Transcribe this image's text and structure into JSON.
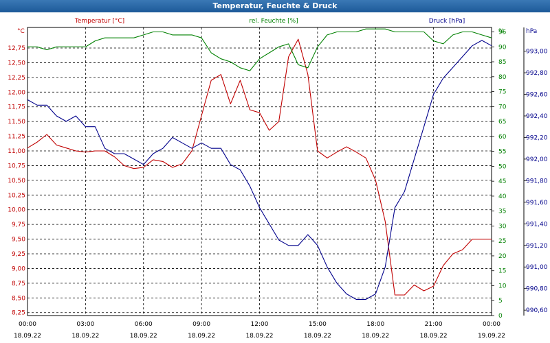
{
  "window": {
    "title": "Temperatur, Feuchte & Druck"
  },
  "chart_data": {
    "type": "line",
    "title": "Temperatur, Feuchte & Druck",
    "grid": true,
    "x_ticks": [
      {
        "time": "00:00",
        "date": "18.09.22"
      },
      {
        "time": "03:00",
        "date": "18.09.22"
      },
      {
        "time": "06:00",
        "date": "18.09.22"
      },
      {
        "time": "09:00",
        "date": "18.09.22"
      },
      {
        "time": "12:00",
        "date": "18.09.22"
      },
      {
        "time": "15:00",
        "date": "18.09.22"
      },
      {
        "time": "18:00",
        "date": "18.09.22"
      },
      {
        "time": "21:00",
        "date": "18.09.22"
      },
      {
        "time": "00:00",
        "date": "19.09.22"
      }
    ],
    "xlim_hours": [
      0,
      24
    ],
    "axes": {
      "temperature": {
        "label": "Temperatur [°C]",
        "unit": "°C",
        "ylim": [
          8.2,
          13.1
        ],
        "color": "#c00000",
        "ticks": [
          "8,25",
          "8,50",
          "8,75",
          "9,00",
          "9,25",
          "9,50",
          "9,75",
          "10,00",
          "10,25",
          "10,50",
          "10,75",
          "11,00",
          "11,25",
          "11,50",
          "11,75",
          "12,00",
          "12,25",
          "12,50",
          "12,75"
        ]
      },
      "humidity": {
        "label": "rel. Feuchte [%]",
        "unit": "%",
        "ylim": [
          0,
          96.5
        ],
        "color": "#008000",
        "ticks": [
          "0",
          "5",
          "10",
          "15",
          "20",
          "25",
          "30",
          "35",
          "40",
          "45",
          "50",
          "55",
          "60",
          "65",
          "70",
          "75",
          "80",
          "85",
          "90",
          "95"
        ]
      },
      "pressure": {
        "label": "Druck [hPa]",
        "unit": "hPa",
        "ylim": [
          990.55,
          993.22
        ],
        "color": "#00008b",
        "ticks": [
          "990,60",
          "990,80",
          "991,00",
          "991,20",
          "991,40",
          "991,60",
          "991,80",
          "992,00",
          "992,20",
          "992,40",
          "992,60",
          "992,80",
          "993,00"
        ]
      }
    },
    "series": [
      {
        "name": "Temperatur [°C]",
        "axis": "temperature",
        "color": "#c00000",
        "x": [
          0,
          0.5,
          1,
          1.5,
          2,
          2.5,
          3,
          3.5,
          4,
          4.5,
          5,
          5.5,
          6,
          6.5,
          7,
          7.5,
          8,
          8.5,
          9,
          9.5,
          10,
          10.5,
          11,
          11.5,
          12,
          12.5,
          13,
          13.5,
          14,
          14.5,
          15,
          15.5,
          16,
          16.5,
          17,
          17.5,
          18,
          18.5,
          19,
          19.5,
          20,
          20.5,
          21,
          21.5,
          22,
          22.5,
          23,
          23.5,
          24
        ],
        "values": [
          11.05,
          11.15,
          11.28,
          11.1,
          11.05,
          11.0,
          10.98,
          11.0,
          11.0,
          10.9,
          10.75,
          10.7,
          10.72,
          10.85,
          10.82,
          10.72,
          10.78,
          11.0,
          11.6,
          12.2,
          12.3,
          11.8,
          12.2,
          11.7,
          11.65,
          11.35,
          11.5,
          12.6,
          12.9,
          12.3,
          11.0,
          10.88,
          10.98,
          11.07,
          10.98,
          10.88,
          10.5,
          9.8,
          8.55,
          8.55,
          8.72,
          8.62,
          8.7,
          9.05,
          9.25,
          9.32,
          9.5,
          9.5,
          9.5
        ]
      },
      {
        "name": "rel. Feuchte [%]",
        "axis": "humidity",
        "color": "#008000",
        "x": [
          0,
          0.5,
          1,
          1.5,
          2,
          2.5,
          3,
          3.5,
          4,
          4.5,
          5,
          5.5,
          6,
          6.5,
          7,
          7.5,
          8,
          8.5,
          9,
          9.5,
          10,
          10.5,
          11,
          11.5,
          12,
          12.5,
          13,
          13.5,
          14,
          14.5,
          15,
          15.5,
          16,
          16.5,
          17,
          17.5,
          18,
          18.5,
          19,
          19.5,
          20,
          20.5,
          21,
          21.5,
          22,
          22.5,
          23,
          23.5,
          24
        ],
        "values": [
          90,
          90,
          89,
          90,
          90,
          90,
          90,
          92,
          93,
          93,
          93,
          93,
          94,
          95,
          95,
          94,
          94,
          94,
          93,
          88,
          86,
          85,
          83,
          82,
          86,
          88,
          90,
          91,
          84,
          83,
          90,
          94,
          95,
          95,
          95,
          96,
          96,
          96,
          95,
          95,
          95,
          95,
          92,
          91,
          94,
          95,
          95,
          94,
          93
        ]
      },
      {
        "name": "Druck [hPa]",
        "axis": "pressure",
        "color": "#00008b",
        "x": [
          0,
          0.5,
          1,
          1.5,
          2,
          2.5,
          3,
          3.5,
          4,
          4.5,
          5,
          5.5,
          6,
          6.5,
          7,
          7.5,
          8,
          8.5,
          9,
          9.5,
          10,
          10.5,
          11,
          11.5,
          12,
          12.5,
          13,
          13.5,
          14,
          14.5,
          15,
          15.5,
          16,
          16.5,
          17,
          17.5,
          18,
          18.5,
          19,
          19.5,
          20,
          20.5,
          21,
          21.5,
          22,
          22.5,
          23,
          23.5,
          24
        ],
        "values": [
          992.55,
          992.5,
          992.5,
          992.4,
          992.35,
          992.4,
          992.3,
          992.3,
          992.1,
          992.05,
          992.05,
          992.0,
          991.95,
          992.05,
          992.1,
          992.2,
          992.15,
          992.1,
          992.15,
          992.1,
          992.1,
          991.95,
          991.9,
          991.75,
          991.55,
          991.4,
          991.25,
          991.2,
          991.2,
          991.3,
          991.2,
          991.0,
          990.85,
          990.75,
          990.7,
          990.7,
          990.75,
          991.0,
          991.55,
          991.7,
          992.0,
          992.3,
          992.6,
          992.75,
          992.85,
          992.95,
          993.05,
          993.1,
          993.05
        ]
      }
    ]
  }
}
